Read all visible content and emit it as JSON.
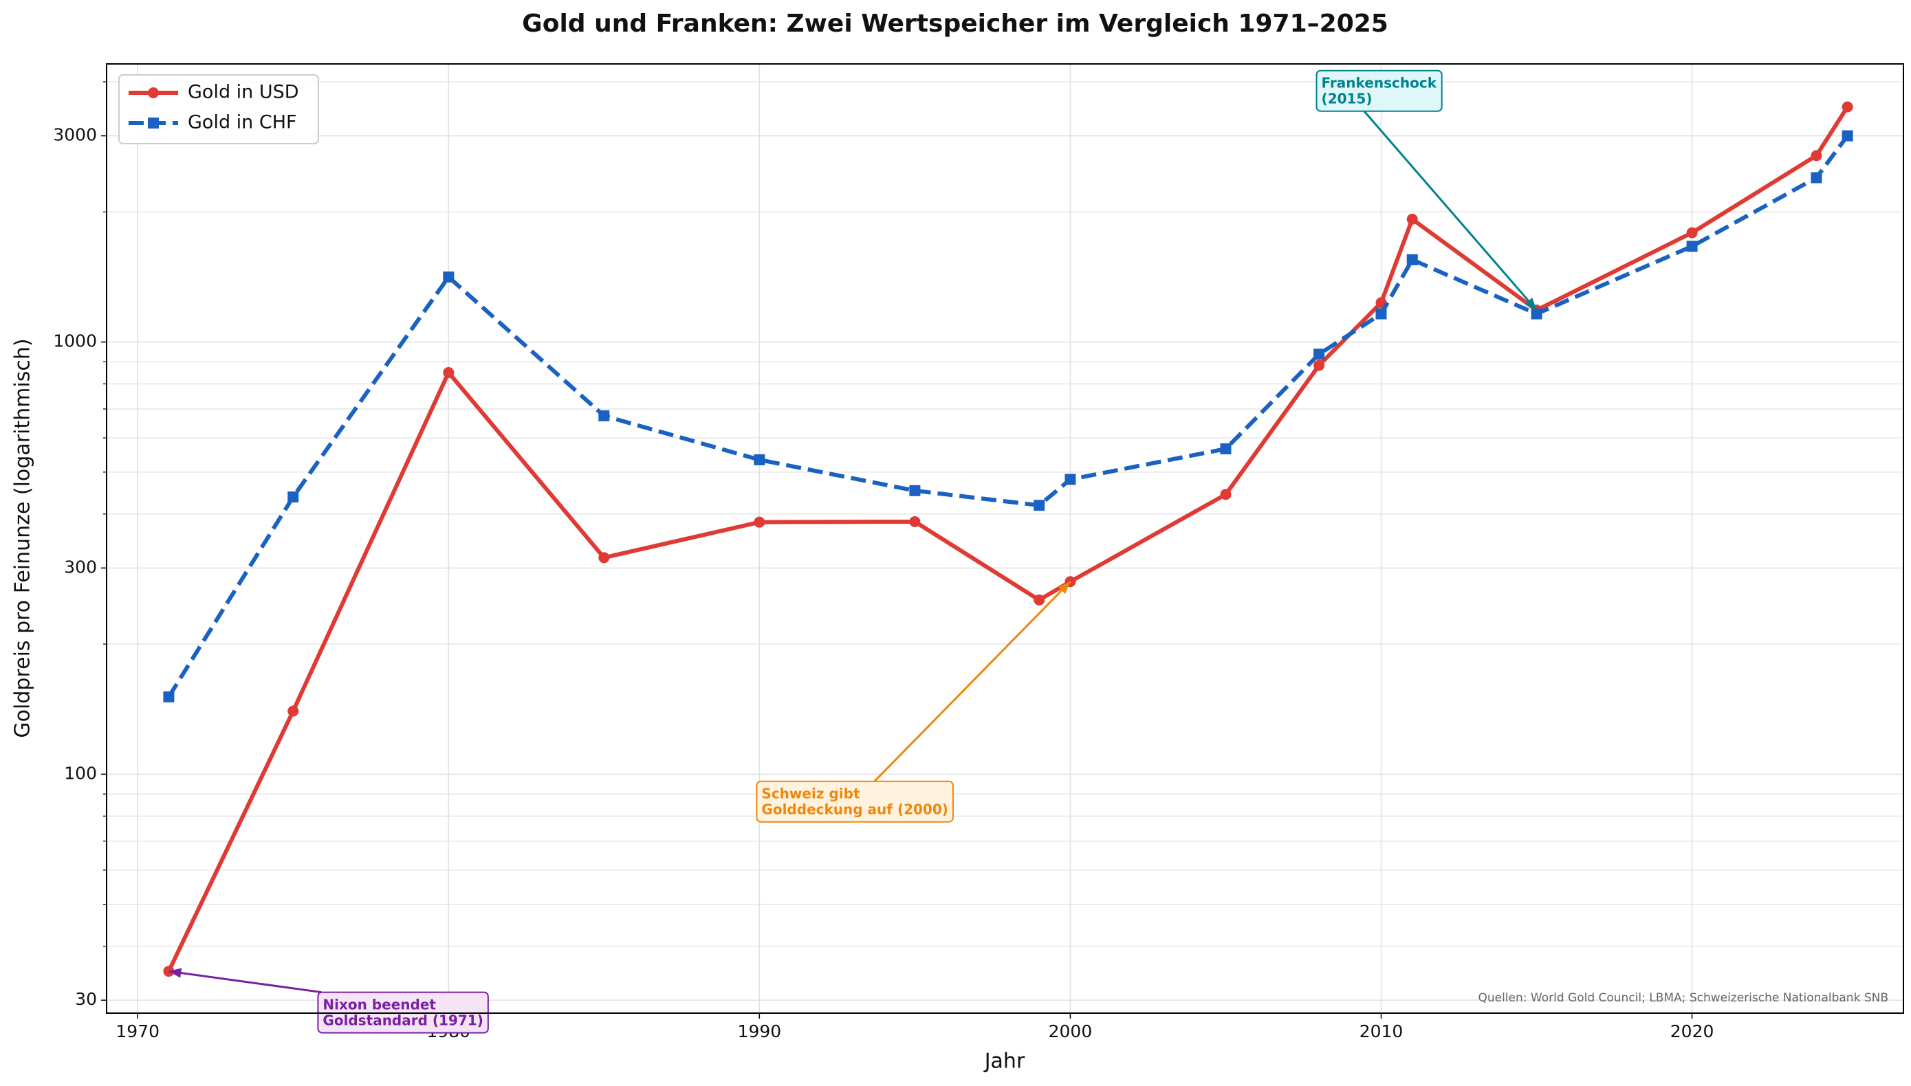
{
  "chart_data": {
    "type": "line",
    "title": "Gold und Franken: Zwei Wertspeicher im Vergleich 1971–2025",
    "xlabel": "Jahr",
    "ylabel": "Goldpreis pro Feinunze (logarithmisch)",
    "log_y": true,
    "grid": true,
    "legend_loc": "upper left",
    "x": [
      1971,
      1975,
      1980,
      1985,
      1990,
      1995,
      1999,
      2000,
      2005,
      2008,
      2010,
      2011,
      2015,
      2020,
      2024,
      2025
    ],
    "series": [
      {
        "name": "Gold in USD",
        "color": "#e03a34",
        "linestyle": "solid",
        "marker": "circle",
        "values": [
          35,
          140,
          850,
          317,
          383,
          384,
          253,
          279,
          444,
          883,
          1233,
          1924,
          1185,
          1790,
          2700,
          3500
        ]
      },
      {
        "name": "Gold in CHF",
        "color": "#1a62c2",
        "linestyle": "dashed",
        "marker": "square",
        "values": [
          151,
          438,
          1414,
          675,
          534,
          453,
          419,
          481,
          566,
          937,
          1162,
          1550,
          1162,
          1665,
          2400,
          3000
        ]
      }
    ],
    "xlim": [
      1969,
      2026.8
    ],
    "xticks": [
      1970,
      1980,
      1990,
      2000,
      2010,
      2020
    ],
    "ylim": [
      28,
      4400
    ],
    "yticks": [
      30,
      100,
      300,
      1000,
      3000
    ],
    "minor_yticks": [
      40,
      50,
      60,
      70,
      80,
      90,
      200,
      400,
      500,
      600,
      700,
      800,
      900,
      2000,
      4000
    ],
    "annotations": [
      {
        "lines": [
          "Nixon beendet",
          "Goldstandard (1971)"
        ],
        "x": 1971,
        "y": 35,
        "color": "#7b1fa2",
        "background": "#f3e5f5"
      },
      {
        "lines": [
          "Schweiz gibt",
          "Golddeckung auf (2000)"
        ],
        "x": 2000,
        "y": 279,
        "color": "#f0870a",
        "background": "#fff3e0"
      },
      {
        "lines": [
          "Frankenschock",
          "(2015)"
        ],
        "x": 2015,
        "y": 1185,
        "color": "#00838f",
        "background": "#e0f7fa"
      }
    ],
    "source": "Quellen: World Gold Council; LBMA; Schweizerische Nationalbank SNB"
  }
}
